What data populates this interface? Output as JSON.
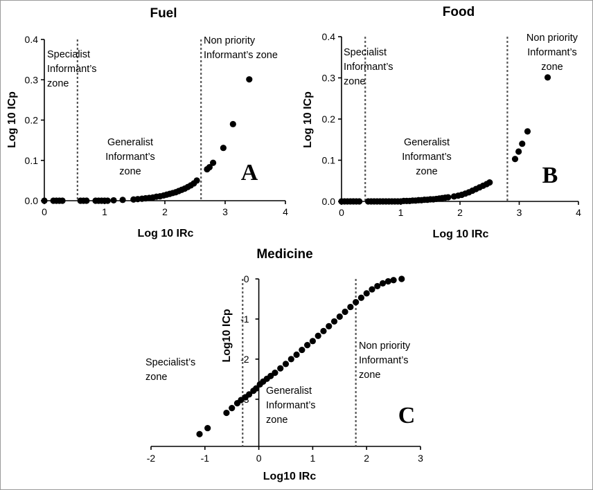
{
  "chart_data": [
    {
      "type": "scatter",
      "panel_letter": "A",
      "title": "Fuel",
      "xlabel": "Log 10 IRc",
      "ylabel": "Log 10 ICp",
      "xlim": [
        0,
        4
      ],
      "ylim": [
        0,
        0.4
      ],
      "xticks": [
        "0",
        "1",
        "2",
        "3",
        "4"
      ],
      "yticks": [
        "0.0",
        "0.1",
        "0.2",
        "0.3",
        "0.4"
      ],
      "dividers": [
        0.55,
        2.6
      ],
      "zones": [
        {
          "lines": [
            "Specialist",
            "Informant’s",
            "zone"
          ]
        },
        {
          "lines": [
            "Generalist",
            "Informant’s",
            "zone"
          ]
        },
        {
          "lines": [
            "Non priority",
            "Informant’s zone"
          ]
        }
      ],
      "points": [
        [
          0.0,
          0.0
        ],
        [
          0.15,
          0.0
        ],
        [
          0.2,
          0.0
        ],
        [
          0.25,
          0.0
        ],
        [
          0.3,
          0.0
        ],
        [
          0.6,
          0.0
        ],
        [
          0.65,
          0.0
        ],
        [
          0.7,
          0.0
        ],
        [
          0.85,
          0.0
        ],
        [
          0.9,
          0.0
        ],
        [
          0.95,
          0.0
        ],
        [
          1.0,
          0.0
        ],
        [
          1.05,
          0.0
        ],
        [
          1.15,
          0.001
        ],
        [
          1.3,
          0.002
        ],
        [
          1.48,
          0.003
        ],
        [
          1.55,
          0.004
        ],
        [
          1.62,
          0.005
        ],
        [
          1.68,
          0.006
        ],
        [
          1.74,
          0.007
        ],
        [
          1.8,
          0.008
        ],
        [
          1.86,
          0.01
        ],
        [
          1.92,
          0.011
        ],
        [
          1.98,
          0.013
        ],
        [
          2.03,
          0.015
        ],
        [
          2.08,
          0.017
        ],
        [
          2.13,
          0.019
        ],
        [
          2.18,
          0.021
        ],
        [
          2.23,
          0.024
        ],
        [
          2.28,
          0.027
        ],
        [
          2.33,
          0.03
        ],
        [
          2.38,
          0.034
        ],
        [
          2.43,
          0.038
        ],
        [
          2.48,
          0.043
        ],
        [
          2.53,
          0.05
        ],
        [
          2.7,
          0.078
        ],
        [
          2.74,
          0.083
        ],
        [
          2.8,
          0.094
        ],
        [
          2.97,
          0.131
        ],
        [
          3.13,
          0.19
        ],
        [
          3.4,
          0.301
        ]
      ]
    },
    {
      "type": "scatter",
      "panel_letter": "B",
      "title": "Food",
      "xlabel": "Log 10 IRc",
      "ylabel": "Log 10 ICp",
      "xlim": [
        0,
        4
      ],
      "ylim": [
        0,
        0.4
      ],
      "xticks": [
        "0",
        "1",
        "2",
        "3",
        "4"
      ],
      "yticks": [
        "0.0",
        "0.1",
        "0.2",
        "0.3",
        "0.4"
      ],
      "dividers": [
        0.4,
        2.8
      ],
      "zones": [
        {
          "lines": [
            "Specialist",
            "Informant’s",
            "zone"
          ]
        },
        {
          "lines": [
            "Generalist",
            "Informant’s",
            "zone"
          ]
        },
        {
          "lines": [
            "Non priority",
            "Informant’s",
            "zone"
          ]
        }
      ],
      "points": [
        [
          0.0,
          0.0
        ],
        [
          0.05,
          0.0
        ],
        [
          0.1,
          0.0
        ],
        [
          0.15,
          0.0
        ],
        [
          0.2,
          0.0
        ],
        [
          0.25,
          0.0
        ],
        [
          0.3,
          0.0
        ],
        [
          0.45,
          0.0
        ],
        [
          0.5,
          0.0
        ],
        [
          0.55,
          0.0
        ],
        [
          0.6,
          0.0
        ],
        [
          0.65,
          0.0
        ],
        [
          0.7,
          0.0
        ],
        [
          0.75,
          0.0
        ],
        [
          0.8,
          0.0
        ],
        [
          0.85,
          0.0
        ],
        [
          0.9,
          0.0
        ],
        [
          0.95,
          0.0
        ],
        [
          1.0,
          0.0
        ],
        [
          1.05,
          0.001
        ],
        [
          1.1,
          0.001
        ],
        [
          1.15,
          0.001
        ],
        [
          1.2,
          0.002
        ],
        [
          1.25,
          0.002
        ],
        [
          1.3,
          0.003
        ],
        [
          1.35,
          0.003
        ],
        [
          1.4,
          0.004
        ],
        [
          1.45,
          0.004
        ],
        [
          1.5,
          0.005
        ],
        [
          1.55,
          0.005
        ],
        [
          1.6,
          0.006
        ],
        [
          1.65,
          0.007
        ],
        [
          1.7,
          0.008
        ],
        [
          1.75,
          0.009
        ],
        [
          1.8,
          0.01
        ],
        [
          1.9,
          0.012
        ],
        [
          1.97,
          0.014
        ],
        [
          2.03,
          0.016
        ],
        [
          2.09,
          0.019
        ],
        [
          2.15,
          0.022
        ],
        [
          2.21,
          0.026
        ],
        [
          2.27,
          0.03
        ],
        [
          2.33,
          0.034
        ],
        [
          2.39,
          0.038
        ],
        [
          2.45,
          0.042
        ],
        [
          2.5,
          0.046
        ],
        [
          2.93,
          0.103
        ],
        [
          2.99,
          0.121
        ],
        [
          3.05,
          0.14
        ],
        [
          3.14,
          0.17
        ],
        [
          3.48,
          0.301
        ]
      ]
    },
    {
      "type": "scatter",
      "panel_letter": "C",
      "title": "Medicine",
      "xlabel": "Log10 IRc",
      "ylabel": "Log10 ICp",
      "xlim": [
        -2,
        3
      ],
      "ylim": [
        -3.9,
        0
      ],
      "xticks": [
        "-2",
        "-1",
        "0",
        "1",
        "2",
        "3"
      ],
      "yticks": [
        "0",
        "-1",
        "-2",
        "-3"
      ],
      "dividers": [
        -0.3,
        1.8
      ],
      "zones": [
        {
          "lines": [
            "Specialist’s",
            "zone"
          ]
        },
        {
          "lines": [
            "Generalist",
            "Informant’s",
            "zone"
          ]
        },
        {
          "lines": [
            "Non priority",
            "Informant’s",
            "zone"
          ]
        }
      ],
      "points": [
        [
          -1.1,
          -3.87
        ],
        [
          -0.95,
          -3.72
        ],
        [
          -0.6,
          -3.34
        ],
        [
          -0.5,
          -3.22
        ],
        [
          -0.4,
          -3.1
        ],
        [
          -0.33,
          -3.02
        ],
        [
          -0.25,
          -2.95
        ],
        [
          -0.18,
          -2.88
        ],
        [
          -0.1,
          -2.79
        ],
        [
          -0.05,
          -2.73
        ],
        [
          0.02,
          -2.63
        ],
        [
          0.08,
          -2.56
        ],
        [
          0.15,
          -2.49
        ],
        [
          0.22,
          -2.42
        ],
        [
          0.3,
          -2.34
        ],
        [
          0.4,
          -2.23
        ],
        [
          0.5,
          -2.12
        ],
        [
          0.6,
          -2.0
        ],
        [
          0.7,
          -1.89
        ],
        [
          0.8,
          -1.77
        ],
        [
          0.9,
          -1.65
        ],
        [
          1.0,
          -1.55
        ],
        [
          1.1,
          -1.42
        ],
        [
          1.2,
          -1.3
        ],
        [
          1.3,
          -1.18
        ],
        [
          1.4,
          -1.06
        ],
        [
          1.5,
          -0.94
        ],
        [
          1.6,
          -0.82
        ],
        [
          1.7,
          -0.7
        ],
        [
          1.8,
          -0.58
        ],
        [
          1.9,
          -0.47
        ],
        [
          2.0,
          -0.36
        ],
        [
          2.1,
          -0.26
        ],
        [
          2.2,
          -0.18
        ],
        [
          2.3,
          -0.11
        ],
        [
          2.4,
          -0.06
        ],
        [
          2.5,
          -0.03
        ],
        [
          2.65,
          0.0
        ]
      ]
    }
  ]
}
